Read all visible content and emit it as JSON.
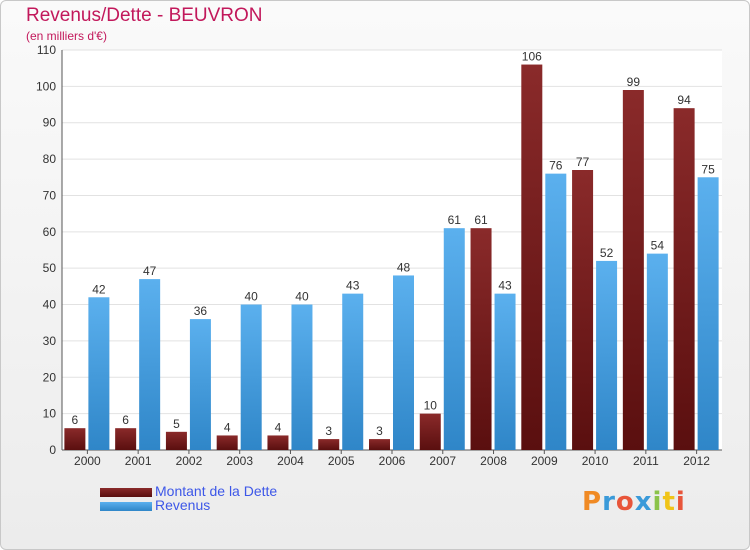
{
  "header": {
    "title": "Revenus/Dette - BEUVRON",
    "subtitle": "(en milliers d'€)"
  },
  "legend": {
    "items": [
      {
        "label": "Montant de la Dette",
        "color": "#6b1a1a"
      },
      {
        "label": "Revenus",
        "color": "#4aa0e0"
      }
    ]
  },
  "logo": {
    "text": "Proxiti",
    "letter_colors": [
      "#f08a24",
      "#3a9ad9",
      "#e8553a",
      "#3a9ad9",
      "#8bc34a",
      "#f0c419",
      "#e8553a"
    ]
  },
  "chart_data": {
    "type": "bar",
    "title": "Revenus/Dette - BEUVRON",
    "subtitle": "(en milliers d'€)",
    "xlabel": "",
    "ylabel": "",
    "ylim": [
      0,
      110
    ],
    "yticks": [
      0,
      10,
      20,
      30,
      40,
      50,
      60,
      70,
      80,
      90,
      100,
      110
    ],
    "grid": true,
    "legend_position": "bottom-left",
    "categories": [
      "2000",
      "2001",
      "2002",
      "2003",
      "2004",
      "2005",
      "2006",
      "2007",
      "2008",
      "2009",
      "2010",
      "2011",
      "2012"
    ],
    "series": [
      {
        "name": "Montant de la Dette",
        "color": "#6b1a1a",
        "values": [
          6,
          6,
          5,
          4,
          4,
          3,
          3,
          10,
          61,
          106,
          77,
          99,
          94
        ]
      },
      {
        "name": "Revenus",
        "color": "#4aa0e0",
        "values": [
          42,
          47,
          36,
          40,
          40,
          43,
          48,
          61,
          43,
          76,
          52,
          54,
          75
        ]
      }
    ]
  }
}
